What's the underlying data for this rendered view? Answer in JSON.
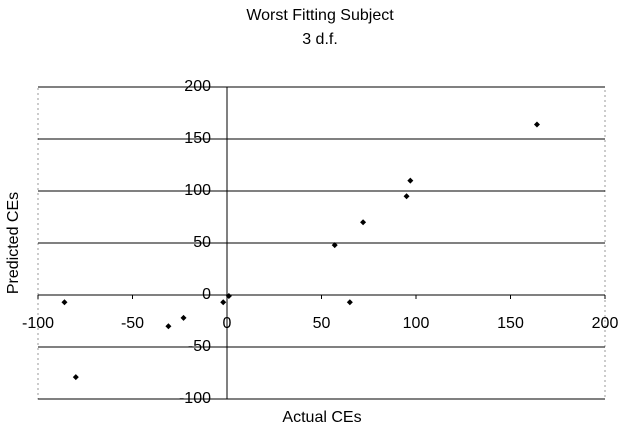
{
  "chart_data": {
    "type": "scatter",
    "title": "Worst Fitting Subject",
    "subtitle": "3 d.f.",
    "x_label": "Actual CEs",
    "y_label": "Predicted CEs",
    "x": [
      -86,
      -80,
      -31,
      -23,
      -2,
      1,
      57,
      65,
      72,
      95,
      97,
      164
    ],
    "values": [
      -7,
      -79,
      -30,
      -22,
      -7,
      -1,
      48,
      -7,
      70,
      95,
      110,
      164
    ],
    "color": "#000000",
    "xlim": [
      -100,
      200
    ],
    "xticks": [
      -100,
      -50,
      0,
      50,
      100,
      150,
      200
    ],
    "ylim": [
      -100,
      200
    ],
    "yticks": [
      -100,
      -50,
      0,
      50,
      100,
      150,
      200
    ],
    "grid": true
  }
}
